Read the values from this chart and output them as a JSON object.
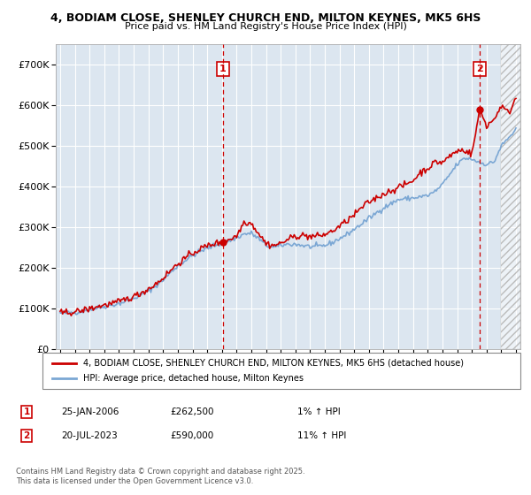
{
  "title_line1": "4, BODIAM CLOSE, SHENLEY CHURCH END, MILTON KEYNES, MK5 6HS",
  "title_line2": "Price paid vs. HM Land Registry's House Price Index (HPI)",
  "ylim": [
    0,
    750000
  ],
  "yticks": [
    0,
    100000,
    200000,
    300000,
    400000,
    500000,
    600000,
    700000
  ],
  "ytick_labels": [
    "£0",
    "£100K",
    "£200K",
    "£300K",
    "£400K",
    "£500K",
    "£600K",
    "£700K"
  ],
  "xlim_start": 1994.7,
  "xlim_end": 2026.3,
  "xticks": [
    1995,
    1996,
    1997,
    1998,
    1999,
    2000,
    2001,
    2002,
    2003,
    2004,
    2005,
    2006,
    2007,
    2008,
    2009,
    2010,
    2011,
    2012,
    2013,
    2014,
    2015,
    2016,
    2017,
    2018,
    2019,
    2020,
    2021,
    2022,
    2023,
    2024,
    2025,
    2026
  ],
  "hpi_color": "#7ba7d4",
  "price_color": "#cc0000",
  "bg_color": "#dce6f0",
  "grid_color": "#ffffff",
  "marker1_x": 2006.07,
  "marker1_y": 262500,
  "marker2_x": 2023.54,
  "marker2_y": 590000,
  "hatch_start": 2025.0,
  "legend_line1": "4, BODIAM CLOSE, SHENLEY CHURCH END, MILTON KEYNES, MK5 6HS (detached house)",
  "legend_line2": "HPI: Average price, detached house, Milton Keynes",
  "ann1_label": "1",
  "ann1_date": "25-JAN-2006",
  "ann1_price": "£262,500",
  "ann1_hpi": "1% ↑ HPI",
  "ann2_label": "2",
  "ann2_date": "20-JUL-2023",
  "ann2_price": "£590,000",
  "ann2_hpi": "11% ↑ HPI",
  "footnote": "Contains HM Land Registry data © Crown copyright and database right 2025.\nThis data is licensed under the Open Government Licence v3.0."
}
